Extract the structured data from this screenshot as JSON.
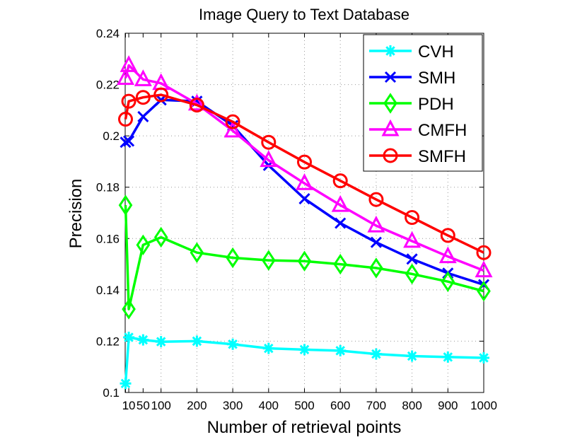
{
  "chart_data": {
    "type": "line",
    "title": "Image Query to Text Database",
    "xlabel": "Number of retrieval points",
    "ylabel": "Precision",
    "x": [
      1,
      10,
      50,
      100,
      200,
      300,
      400,
      500,
      600,
      700,
      800,
      900,
      1000
    ],
    "xlim": [
      0,
      1000
    ],
    "ylim": [
      0.1,
      0.24
    ],
    "xticks": [
      1,
      10,
      50,
      100,
      200,
      300,
      400,
      500,
      600,
      700,
      800,
      900,
      1000
    ],
    "xtick_labels": [
      "1",
      "10",
      "50",
      "100",
      "200",
      "300",
      "400",
      "500",
      "600",
      "700",
      "800",
      "900",
      "1000"
    ],
    "yticks": [
      0.1,
      0.12,
      0.14,
      0.16,
      0.18,
      0.2,
      0.22,
      0.24
    ],
    "ytick_labels": [
      "0.1",
      "0.12",
      "0.14",
      "0.16",
      "0.18",
      "0.2",
      "0.22",
      "0.24"
    ],
    "grid": true,
    "legend_position": "top-right",
    "series": [
      {
        "name": "CVH",
        "color": "#00FFFF",
        "marker": "asterisk",
        "values": [
          0.1035,
          0.1215,
          0.1205,
          0.1198,
          0.12,
          0.1188,
          0.1172,
          0.1167,
          0.1163,
          0.115,
          0.1142,
          0.1138,
          0.1135
        ]
      },
      {
        "name": "SMH",
        "color": "#0000FF",
        "marker": "x",
        "values": [
          0.1975,
          0.198,
          0.2075,
          0.214,
          0.2135,
          0.204,
          0.1885,
          0.1755,
          0.166,
          0.1585,
          0.152,
          0.1465,
          0.142
        ]
      },
      {
        "name": "PDH",
        "color": "#00FF00",
        "marker": "diamond",
        "values": [
          0.173,
          0.1325,
          0.1575,
          0.1605,
          0.1545,
          0.1525,
          0.1515,
          0.1512,
          0.15,
          0.1485,
          0.1462,
          0.1432,
          0.1395
        ]
      },
      {
        "name": "CMFH",
        "color": "#FF00FF",
        "marker": "triangle",
        "values": [
          0.2225,
          0.2275,
          0.222,
          0.2205,
          0.2125,
          0.202,
          0.1905,
          0.1815,
          0.173,
          0.165,
          0.159,
          0.153,
          0.1475
        ]
      },
      {
        "name": "SMFH",
        "color": "#FF0000",
        "marker": "circle",
        "values": [
          0.2065,
          0.2135,
          0.215,
          0.216,
          0.212,
          0.2055,
          0.1975,
          0.1898,
          0.1825,
          0.1752,
          0.1682,
          0.1612,
          0.1545
        ]
      }
    ]
  }
}
